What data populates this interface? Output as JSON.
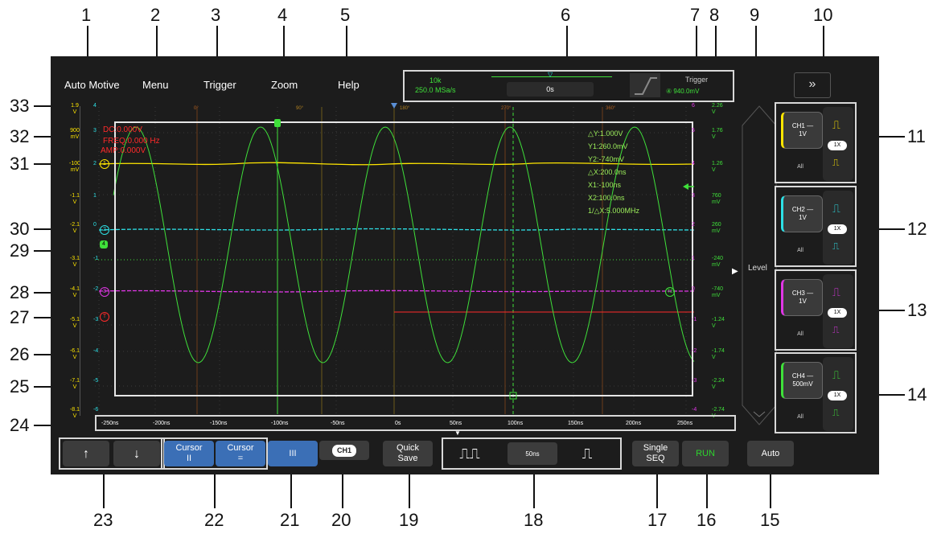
{
  "callouts": [
    "1",
    "2",
    "3",
    "4",
    "5",
    "6",
    "7",
    "8",
    "9",
    "10",
    "11",
    "12",
    "13",
    "14",
    "15",
    "16",
    "17",
    "18",
    "19",
    "20",
    "21",
    "22",
    "23",
    "24",
    "25",
    "26",
    "27",
    "28",
    "29",
    "30",
    "31",
    "32",
    "33"
  ],
  "menu": {
    "automotive": "Auto Motive",
    "menu": "Menu",
    "trigger": "Trigger",
    "zoom": "Zoom",
    "help": "Help"
  },
  "acquisition": {
    "points": "10k",
    "rate": "250.0 MSa/s",
    "position": "0s"
  },
  "trigger_box": {
    "label": "Trigger",
    "level": "940.0mV"
  },
  "collapse_icon": "double-chevron-down",
  "readout": {
    "dc": "DC:0.000V",
    "freq": "FREQ:0.000 Hz",
    "amp": "AMP:0.000V"
  },
  "measurements": [
    "△Y:1.000V",
    "Y1:260.0mV",
    "Y2:-740mV",
    "△X:200.0ns",
    "X1:-100ns",
    "X2:100.0ns",
    "1/△X:5.000MHz"
  ],
  "left_scale_yellow": [
    [
      "1.9",
      "V"
    ],
    [
      "900",
      "mV"
    ],
    [
      "-100",
      "mV"
    ],
    [
      "-1.1",
      "V"
    ],
    [
      "-2.1",
      "V"
    ],
    [
      "-3.1",
      "V"
    ],
    [
      "-4.1",
      "V"
    ],
    [
      "-5.1",
      "V"
    ],
    [
      "-6.1",
      "V"
    ],
    [
      "-7.1",
      "V"
    ],
    [
      "-8.1",
      "V"
    ]
  ],
  "left_scale_cyan": [
    "4",
    "3",
    "2",
    "1",
    "0",
    "-1",
    "-2",
    "-3",
    "-4",
    "-5",
    "-6"
  ],
  "right_scale_magenta": [
    "6",
    "5",
    "4",
    "3",
    "2",
    "1",
    "0",
    "-1",
    "-2",
    "-3",
    "-4"
  ],
  "right_scale_green": [
    [
      "2.26",
      "V"
    ],
    [
      "1.76",
      "V"
    ],
    [
      "1.26",
      "V"
    ],
    [
      "760",
      "mV"
    ],
    [
      "260",
      "mV"
    ],
    [
      "-240",
      "mV"
    ],
    [
      "-740",
      "mV"
    ],
    [
      "-1.24",
      "V"
    ],
    [
      "-1.74",
      "V"
    ],
    [
      "-2.24",
      "V"
    ],
    [
      "-2.74",
      "V"
    ]
  ],
  "top_phase": [
    "0°",
    "90°",
    "180°",
    "270°",
    "360°"
  ],
  "channel_markers": {
    "ch1": "1",
    "ch2": "2",
    "ch3": "3",
    "ch4": "4",
    "trigger": "T"
  },
  "time_ticks": [
    "-250ns",
    "-200ns",
    "-150ns",
    "-100ns",
    "-50ns",
    "0s",
    "50ns",
    "100ns",
    "150ns",
    "200ns",
    "250ns"
  ],
  "level_label": "Level",
  "channels": [
    {
      "name": "CH1 —",
      "scale": "1V",
      "all": "All",
      "probe": "1X",
      "color": "#ffe600"
    },
    {
      "name": "CH2 —",
      "scale": "1V",
      "all": "All",
      "probe": "1X",
      "color": "#2de0e6"
    },
    {
      "name": "CH3 —",
      "scale": "1V",
      "all": "All",
      "probe": "1X",
      "color": "#e036e6"
    },
    {
      "name": "CH4 —",
      "scale": "500mV",
      "all": "All",
      "probe": "1X",
      "color": "#3fe03a"
    }
  ],
  "bottom": {
    "up": "↑",
    "down": "↓",
    "cursor_v_label": "Cursor",
    "cursor_v_sym": "II",
    "cursor_h_label": "Cursor",
    "cursor_h_sym": "=",
    "cursor_mode": "III",
    "ch_select": "CH1",
    "quick_save_1": "Quick",
    "quick_save_2": "Save",
    "timebase": "50ns",
    "single_1": "Single",
    "single_2": "SEQ",
    "run": "RUN",
    "auto": "Auto"
  },
  "colors": {
    "ch1": "#ffe600",
    "ch2": "#2de0e6",
    "ch3": "#e036e6",
    "ch4": "#3fe03a",
    "readout_red": "#ff2a2a",
    "measure_green": "#9df05b",
    "active_blue": "#3b6fb6",
    "run_green": "#2ed32e"
  }
}
